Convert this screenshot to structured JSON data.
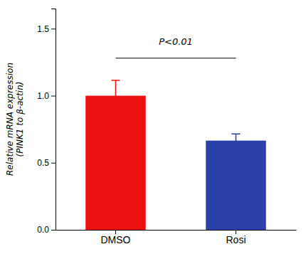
{
  "chart_data": {
    "type": "bar",
    "y_label": "Relative mRNA expression\n(PINK1 to β-actin)",
    "categories": [
      "DMSO",
      "Rosi"
    ],
    "values": [
      1.0,
      0.665
    ],
    "errors": [
      0.115,
      0.05
    ],
    "colors": [
      "#ee1111",
      "#2a3faa"
    ],
    "ylim": [
      0,
      1.65
    ],
    "yticks": [
      {
        "value": 0.0,
        "label": "0.0"
      },
      0.5,
      {
        "value": 1.0,
        "label": "1.0"
      },
      1.5
    ],
    "annotations": [
      {
        "text": "P<0.01",
        "y": 1.38,
        "line_y": 1.28
      }
    ],
    "grid": false
  }
}
